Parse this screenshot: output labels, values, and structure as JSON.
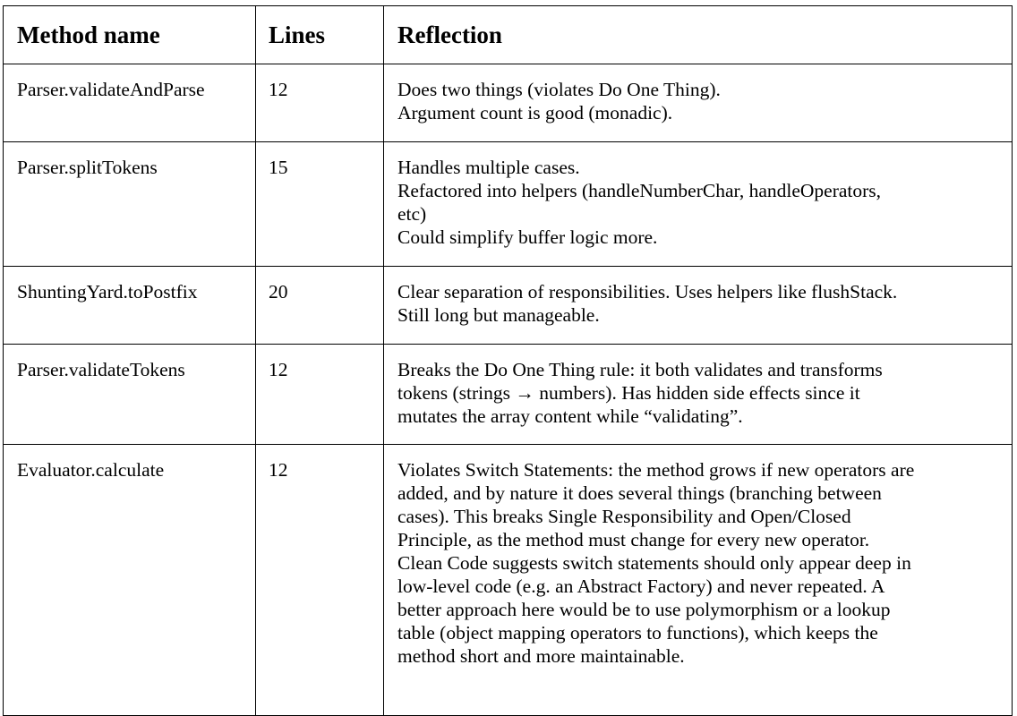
{
  "table": {
    "headers": {
      "method": "Method name",
      "lines": "Lines",
      "reflection": "Reflection"
    },
    "rows": [
      {
        "method": "Parser.validateAndParse",
        "lines": "12",
        "reflection": [
          "Does two things (violates Do One Thing).",
          "Argument count is good (monadic)."
        ]
      },
      {
        "method": "Parser.splitTokens",
        "lines": "15",
        "reflection": [
          "Handles multiple cases.",
          "Refactored into helpers (handleNumberChar, handleOperators,",
          "etc)",
          "Could simplify buffer logic more."
        ]
      },
      {
        "method": "ShuntingYard.toPostfix",
        "lines": "20",
        "reflection": [
          "Clear separation of responsibilities. Uses helpers like flushStack.",
          "Still long but manageable."
        ]
      },
      {
        "method": "Parser.validateTokens",
        "lines": "12",
        "reflection": [
          "Breaks the Do One Thing rule: it both validates and transforms",
          "tokens (strings → numbers). Has hidden side effects since it",
          "mutates the array content while “validating”."
        ]
      },
      {
        "method": "Evaluator.calculate",
        "lines": "12",
        "reflection": [
          "Violates Switch Statements: the method grows if new operators are",
          "added, and by nature it does several things (branching between",
          "cases). This breaks Single Responsibility and Open/Closed",
          "Principle, as the method must change for every new operator.",
          "Clean Code suggests switch statements should only appear deep in",
          "low-level code (e.g. an Abstract Factory) and never repeated. A",
          "better approach here would be to use polymorphism or a lookup",
          "table (object mapping operators to functions), which keeps the",
          "method short and more maintainable."
        ]
      }
    ]
  }
}
